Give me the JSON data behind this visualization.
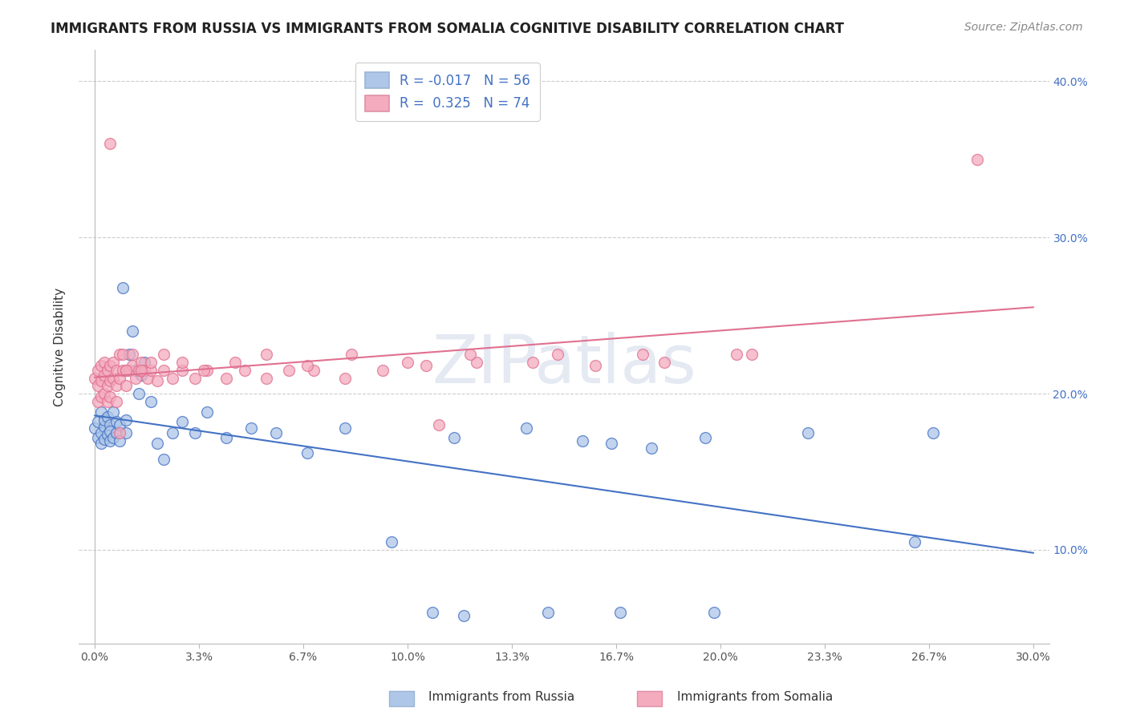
{
  "title": "IMMIGRANTS FROM RUSSIA VS IMMIGRANTS FROM SOMALIA COGNITIVE DISABILITY CORRELATION CHART",
  "source": "Source: ZipAtlas.com",
  "xlabel_russia": "Immigrants from Russia",
  "xlabel_somalia": "Immigrants from Somalia",
  "ylabel": "Cognitive Disability",
  "r_russia": -0.017,
  "n_russia": 56,
  "r_somalia": 0.325,
  "n_somalia": 74,
  "xlim": [
    0.0,
    0.3
  ],
  "ylim": [
    0.04,
    0.42
  ],
  "russia_color": "#aec6e8",
  "somalia_color": "#f4abbe",
  "russia_line_color": "#4472c4",
  "somalia_line_color": "#e07090",
  "russia_x": [
    0.0,
    0.001,
    0.001,
    0.002,
    0.002,
    0.002,
    0.003,
    0.003,
    0.003,
    0.004,
    0.004,
    0.005,
    0.005,
    0.005,
    0.006,
    0.006,
    0.007,
    0.007,
    0.008,
    0.008,
    0.009,
    0.01,
    0.01,
    0.011,
    0.012,
    0.013,
    0.014,
    0.015,
    0.016,
    0.018,
    0.02,
    0.022,
    0.025,
    0.028,
    0.032,
    0.036,
    0.042,
    0.05,
    0.058,
    0.068,
    0.08,
    0.095,
    0.115,
    0.138,
    0.165,
    0.195,
    0.228,
    0.262,
    0.156,
    0.178,
    0.108,
    0.145,
    0.118,
    0.168,
    0.198,
    0.268
  ],
  "russia_y": [
    0.178,
    0.172,
    0.182,
    0.168,
    0.175,
    0.188,
    0.171,
    0.179,
    0.183,
    0.174,
    0.185,
    0.17,
    0.18,
    0.176,
    0.172,
    0.188,
    0.175,
    0.182,
    0.17,
    0.18,
    0.268,
    0.175,
    0.183,
    0.225,
    0.24,
    0.215,
    0.2,
    0.212,
    0.22,
    0.195,
    0.168,
    0.158,
    0.175,
    0.182,
    0.175,
    0.188,
    0.172,
    0.178,
    0.175,
    0.162,
    0.178,
    0.105,
    0.172,
    0.178,
    0.168,
    0.172,
    0.175,
    0.105,
    0.17,
    0.165,
    0.06,
    0.06,
    0.058,
    0.06,
    0.06,
    0.175
  ],
  "somalia_x": [
    0.0,
    0.001,
    0.001,
    0.001,
    0.002,
    0.002,
    0.002,
    0.003,
    0.003,
    0.003,
    0.004,
    0.004,
    0.004,
    0.005,
    0.005,
    0.005,
    0.006,
    0.006,
    0.007,
    0.007,
    0.007,
    0.008,
    0.008,
    0.009,
    0.009,
    0.01,
    0.01,
    0.011,
    0.012,
    0.013,
    0.014,
    0.015,
    0.016,
    0.017,
    0.018,
    0.02,
    0.022,
    0.025,
    0.028,
    0.032,
    0.036,
    0.042,
    0.048,
    0.055,
    0.062,
    0.07,
    0.08,
    0.092,
    0.106,
    0.122,
    0.14,
    0.16,
    0.182,
    0.205,
    0.01,
    0.012,
    0.015,
    0.018,
    0.022,
    0.028,
    0.035,
    0.045,
    0.055,
    0.068,
    0.082,
    0.1,
    0.12,
    0.148,
    0.175,
    0.21,
    0.005,
    0.008,
    0.11,
    0.282
  ],
  "somalia_y": [
    0.21,
    0.215,
    0.195,
    0.205,
    0.218,
    0.198,
    0.208,
    0.22,
    0.2,
    0.212,
    0.215,
    0.205,
    0.195,
    0.218,
    0.208,
    0.198,
    0.22,
    0.21,
    0.215,
    0.205,
    0.195,
    0.225,
    0.21,
    0.215,
    0.225,
    0.215,
    0.205,
    0.215,
    0.218,
    0.21,
    0.215,
    0.22,
    0.215,
    0.21,
    0.215,
    0.208,
    0.215,
    0.21,
    0.215,
    0.21,
    0.215,
    0.21,
    0.215,
    0.21,
    0.215,
    0.215,
    0.21,
    0.215,
    0.218,
    0.22,
    0.22,
    0.218,
    0.22,
    0.225,
    0.215,
    0.225,
    0.215,
    0.22,
    0.225,
    0.22,
    0.215,
    0.22,
    0.225,
    0.218,
    0.225,
    0.22,
    0.225,
    0.225,
    0.225,
    0.225,
    0.36,
    0.175,
    0.18,
    0.35
  ]
}
